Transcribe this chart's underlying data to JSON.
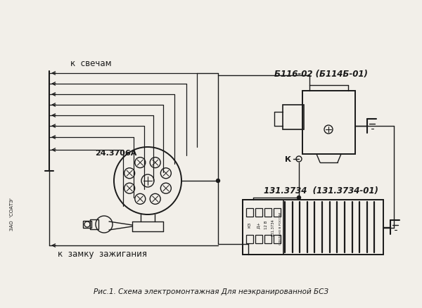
{
  "bg_color": "#f2efe9",
  "line_color": "#1a1a1a",
  "title_text": "Рис.1. Схема электромонтажная Для неэкранированной БСЗ",
  "label_k_svecham": "к  свечам",
  "label_k_zamku": "к  замку  зажигания",
  "label_24_3706a": "24.3706А",
  "label_b116": "Б116-02 (Б114Б-01)",
  "label_131": "131.3734  (131.3734-01)",
  "label_k": "К",
  "label_zao": "ЗАО  'СОАТЭ'",
  "fig_width": 6.0,
  "fig_height": 4.39,
  "dpi": 100
}
